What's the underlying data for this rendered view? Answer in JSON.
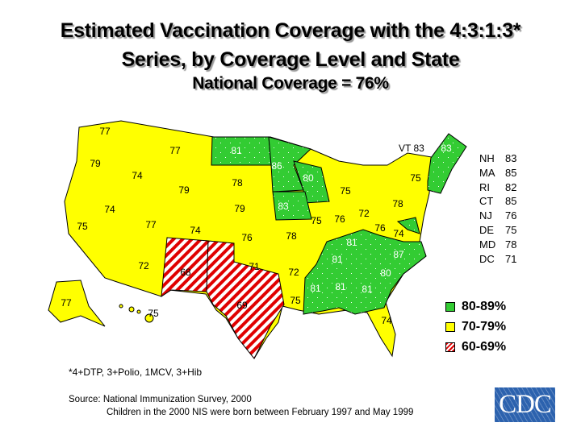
{
  "title": {
    "line1": "Estimated Vaccination Coverage with the 4:3:1:3*",
    "line2": "Series, by Coverage Level and State",
    "line3": "National Coverage = 76%"
  },
  "map_values": {
    "WA": "77",
    "OR": "79",
    "CA": "75",
    "NV": "74",
    "ID": "74",
    "MT": "77",
    "WY": "79",
    "UT": "77",
    "CO": "74",
    "AZ": "72",
    "NM": "68",
    "ND": "81",
    "SD": "78",
    "NE": "79",
    "KS": "76",
    "OK": "71",
    "TX": "69",
    "MN": "86",
    "IA": "83",
    "MO": "78",
    "AR": "72",
    "LA": "75",
    "WI": "80",
    "IL": "75",
    "MI": "75",
    "IN": "76",
    "OH": "72",
    "KY": "81",
    "TN": "81",
    "MS": "81",
    "AL": "81",
    "GA": "81",
    "FL": "74",
    "SC": "80",
    "NC": "87",
    "VA": "74",
    "WV": "76",
    "PA": "78",
    "NY": "75",
    "ME": "83",
    "AK": "77",
    "HI": "75"
  },
  "vt_label": "VT 83",
  "small_states": [
    {
      "state": "NH",
      "value": "83"
    },
    {
      "state": "MA",
      "value": "85"
    },
    {
      "state": "RI",
      "value": "82"
    },
    {
      "state": "CT",
      "value": "85"
    },
    {
      "state": "NJ",
      "value": "76"
    },
    {
      "state": "DE",
      "value": "75"
    },
    {
      "state": "MD",
      "value": "78"
    },
    {
      "state": "DC",
      "value": "71"
    }
  ],
  "legend": [
    {
      "label": "80-89%",
      "color": "#33cc33"
    },
    {
      "label": "70-79%",
      "color": "#ffff00"
    },
    {
      "label": "60-69%",
      "color": "#ff0000"
    }
  ],
  "footnote": "*4+DTP, 3+Polio, 1MCV, 3+Hib",
  "source": {
    "line1": "Source:  National Immunization Survey, 2000",
    "line2": "Children in the 2000 NIS were born between February 1997 and May 1999"
  },
  "logo": "CDC"
}
